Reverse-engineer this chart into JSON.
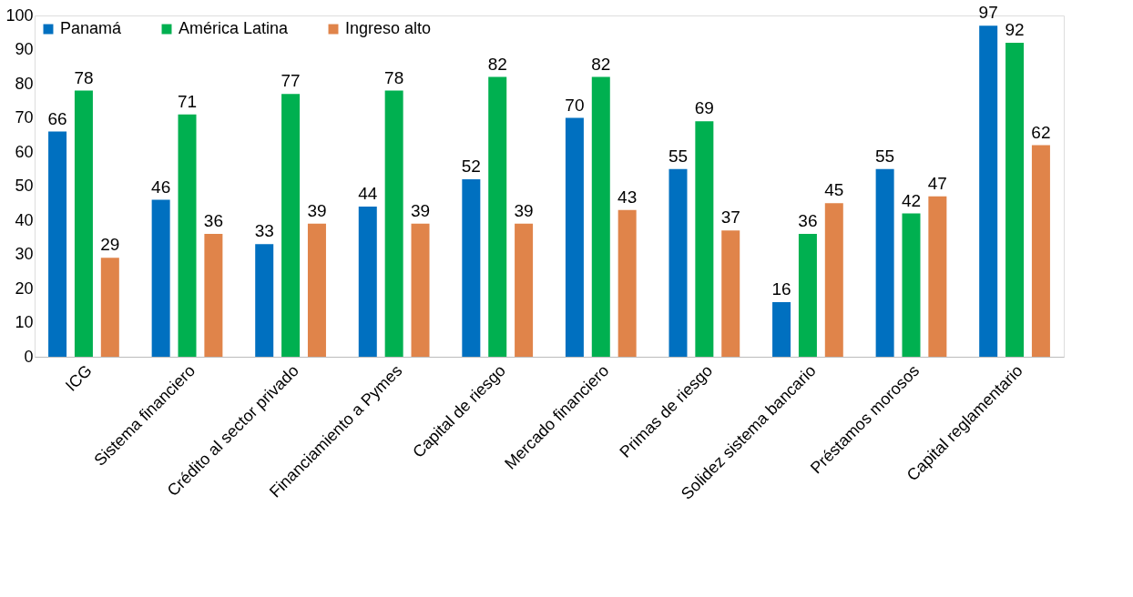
{
  "chart_data": {
    "type": "bar",
    "categories": [
      "ICG",
      "Sistema financiero",
      "Crédito al sector privado",
      "Financiamiento a Pymes",
      "Capital de riesgo",
      "Mercado financiero",
      "Primas de riesgo",
      "Solidez sistema bancario",
      "Préstamos morosos",
      "Capital reglamentario"
    ],
    "series": [
      {
        "name": "Panamá",
        "color": "#0070c0",
        "values": [
          66,
          46,
          33,
          44,
          52,
          70,
          55,
          16,
          55,
          97
        ]
      },
      {
        "name": "América Latina",
        "color": "#00b050",
        "values": [
          78,
          71,
          77,
          78,
          82,
          82,
          69,
          36,
          42,
          92
        ]
      },
      {
        "name": "Ingreso alto",
        "color": "#e0844a",
        "values": [
          29,
          36,
          39,
          39,
          39,
          43,
          37,
          45,
          47,
          62
        ]
      }
    ],
    "ylim": [
      0,
      100
    ],
    "yticks": [
      0,
      10,
      20,
      30,
      40,
      50,
      60,
      70,
      80,
      90,
      100
    ],
    "data_labels": true,
    "legend": "top left",
    "grid": false
  }
}
